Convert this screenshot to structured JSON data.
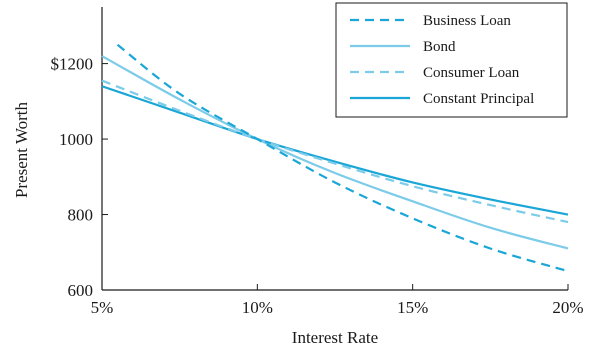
{
  "chart_data": {
    "type": "line",
    "xlabel": "Interest Rate",
    "ylabel": "Present Worth",
    "xlim": [
      5,
      20
    ],
    "ylim": [
      600,
      1350
    ],
    "x_ticks": [
      {
        "value": 5,
        "label": "5%"
      },
      {
        "value": 10,
        "label": "10%"
      },
      {
        "value": 15,
        "label": "15%"
      },
      {
        "value": 20,
        "label": "20%"
      }
    ],
    "y_ticks": [
      {
        "value": 600,
        "label": "600"
      },
      {
        "value": 800,
        "label": "800"
      },
      {
        "value": 1000,
        "label": "1000"
      },
      {
        "value": 1200,
        "label": "$1200"
      }
    ],
    "grid": false,
    "legend_position": "top-right",
    "series": [
      {
        "name": "Business Loan",
        "color": "#1aa6d6",
        "dash": "dashed",
        "points": [
          [
            5.5,
            1250
          ],
          [
            7.5,
            1120
          ],
          [
            10,
            1000
          ],
          [
            12.5,
            885
          ],
          [
            15,
            790
          ],
          [
            17.5,
            710
          ],
          [
            20,
            650
          ]
        ]
      },
      {
        "name": "Bond",
        "color": "#7ccbe9",
        "dash": "solid",
        "points": [
          [
            5,
            1220
          ],
          [
            7.5,
            1105
          ],
          [
            10,
            1000
          ],
          [
            12.5,
            910
          ],
          [
            15,
            835
          ],
          [
            17.5,
            765
          ],
          [
            20,
            710
          ]
        ]
      },
      {
        "name": "Consumer Loan",
        "color": "#7ccbe9",
        "dash": "dashed",
        "points": [
          [
            5,
            1155
          ],
          [
            7.5,
            1075
          ],
          [
            10,
            1000
          ],
          [
            12.5,
            935
          ],
          [
            15,
            875
          ],
          [
            17.5,
            825
          ],
          [
            20,
            780
          ]
        ]
      },
      {
        "name": "Constant Principal",
        "color": "#1aa6d6",
        "dash": "solid",
        "points": [
          [
            5,
            1140
          ],
          [
            7.5,
            1070
          ],
          [
            10,
            1000
          ],
          [
            12.5,
            940
          ],
          [
            15,
            885
          ],
          [
            17.5,
            840
          ],
          [
            20,
            800
          ]
        ]
      }
    ]
  }
}
